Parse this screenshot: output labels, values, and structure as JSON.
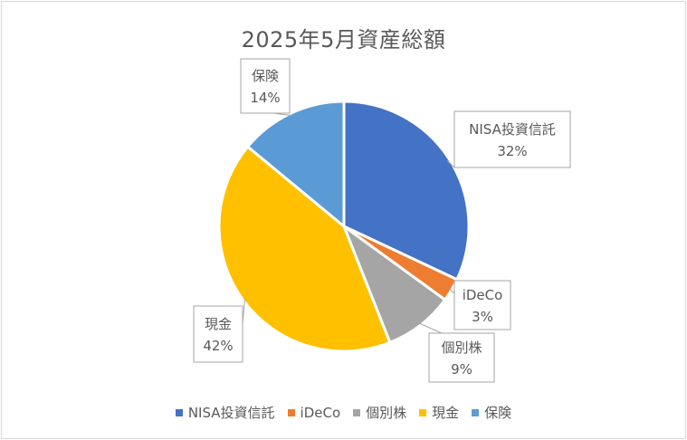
{
  "chart_data": {
    "type": "pie",
    "title": "2025年5月資産総額",
    "categories": [
      "NISA投資信託",
      "iDeCo",
      "個別株",
      "現金",
      "保険"
    ],
    "values": [
      32,
      3,
      9,
      42,
      14
    ],
    "labels": [
      "32%",
      "3%",
      "9%",
      "42%",
      "14%"
    ],
    "colors": [
      "#4472c4",
      "#ed7d31",
      "#a5a5a5",
      "#ffc000",
      "#5b9bd5"
    ],
    "legend_position": "bottom"
  }
}
